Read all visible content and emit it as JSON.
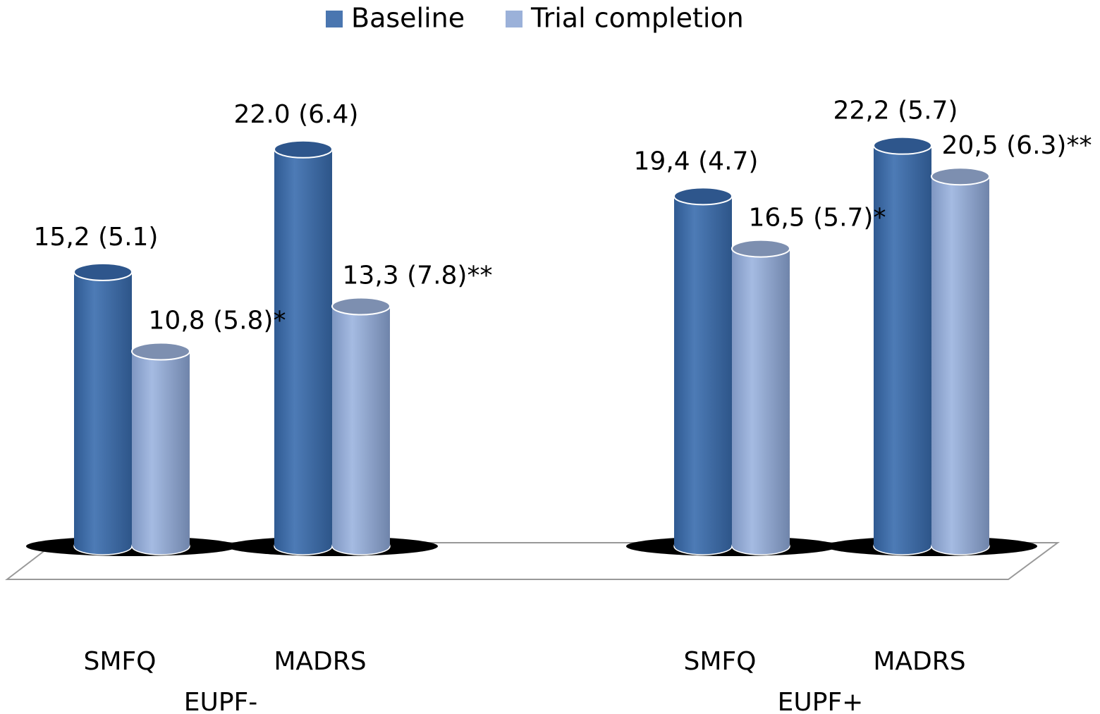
{
  "chart_data": {
    "type": "bar3d",
    "categories": [
      "SMFQ",
      "MADRS",
      "SMFQ",
      "MADRS"
    ],
    "groups": [
      "EUPF-",
      "EUPF+"
    ],
    "series": [
      {
        "name": "Baseline",
        "color": "#4a76b0",
        "values": [
          15.2,
          22.0,
          19.4,
          22.2
        ],
        "value_labels": [
          "15,2 (5.1)",
          "22.0 (6.4)",
          "19,4 (4.7)",
          "22,2 (5.7)"
        ]
      },
      {
        "name": "Trial completion",
        "color": "#9bb1d9",
        "values": [
          10.8,
          13.3,
          16.5,
          20.5
        ],
        "value_labels": [
          "10,8 (5.8)*",
          "13,3 (7.8)**",
          "16,5 (5.7)*",
          "20,5 (6.3)**"
        ]
      }
    ],
    "legend": "top"
  }
}
